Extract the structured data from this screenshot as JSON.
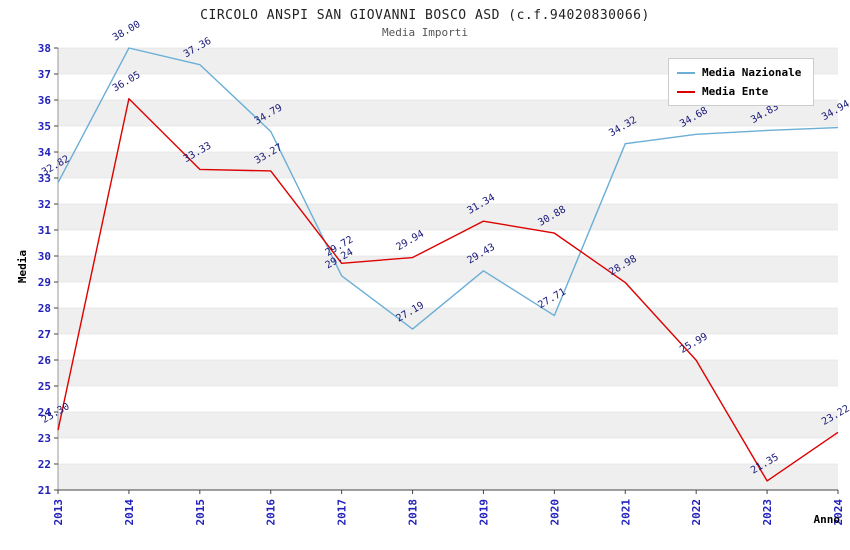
{
  "chart_data": {
    "type": "line",
    "title": "CIRCOLO ANSPI SAN GIOVANNI BOSCO ASD (c.f.94020830066)",
    "subtitle": "Media Importi",
    "xlabel": "Anno",
    "ylabel": "Media",
    "x": [
      "2013",
      "2014",
      "2015",
      "2016",
      "2017",
      "2018",
      "2019",
      "2020",
      "2021",
      "2022",
      "2023",
      "2024"
    ],
    "ylim": [
      21,
      38
    ],
    "ytick_step": 1,
    "grid": true,
    "legend_position": "top-right",
    "series": [
      {
        "name": "Media Nazionale",
        "color": "#6baed6",
        "values": [
          32.82,
          38.0,
          37.36,
          34.79,
          29.24,
          27.19,
          29.43,
          27.71,
          34.32,
          34.68,
          34.83,
          34.94
        ]
      },
      {
        "name": "Media Ente",
        "color": "#dd0000",
        "values": [
          23.3,
          36.05,
          33.33,
          33.27,
          29.72,
          29.94,
          31.34,
          30.88,
          28.98,
          25.99,
          21.35,
          23.22
        ]
      }
    ],
    "colors": {
      "band": "#efefef",
      "grid": "#dcdcdc",
      "axis": "#9a9a9a",
      "bottom_axis": "#444444",
      "tick_label": "#2222bb",
      "data_label": "#181878"
    }
  }
}
